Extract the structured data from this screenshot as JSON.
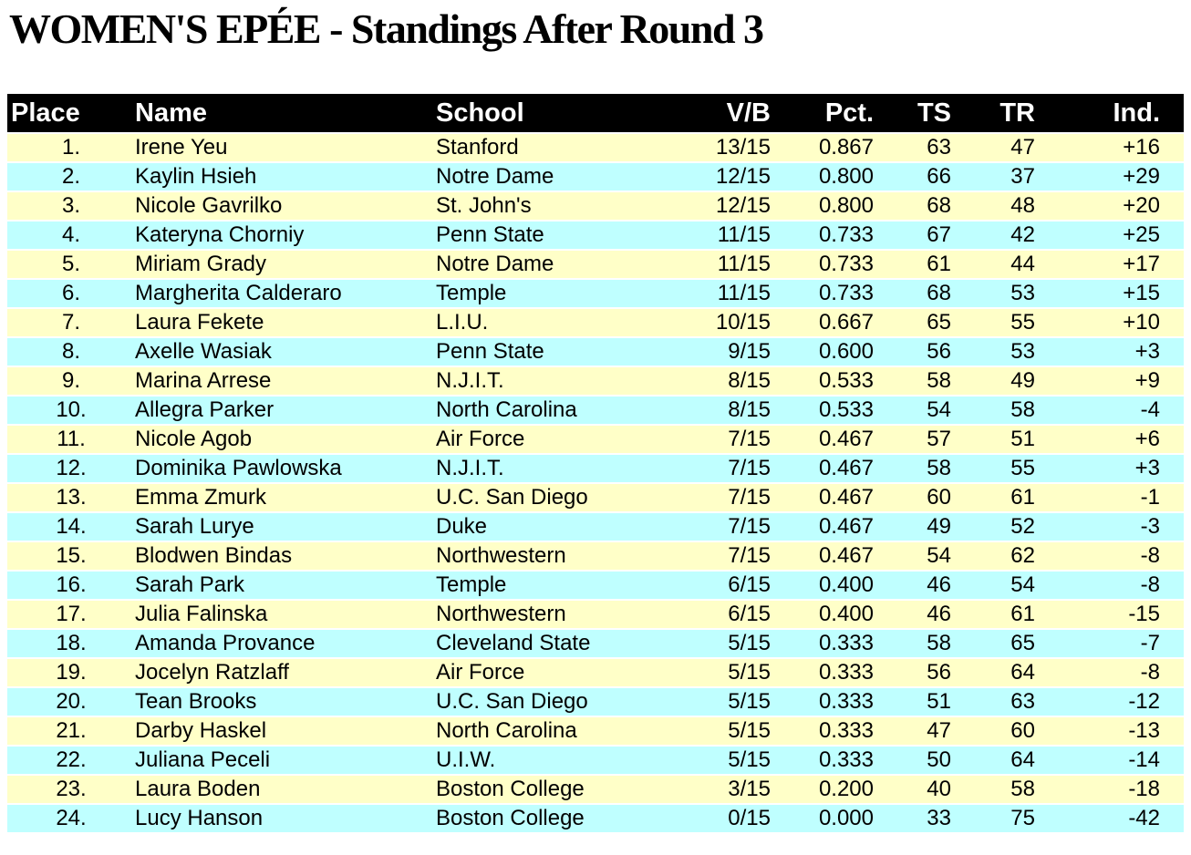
{
  "title": "WOMEN'S EPÉE - Standings After Round 3",
  "colors": {
    "header_bg": "#000000",
    "header_text": "#FFFFFF",
    "row_odd": "#FFFFC8",
    "row_even": "#BFFFFF",
    "body_text": "#000000"
  },
  "table": {
    "columns": [
      {
        "key": "place",
        "label": "Place"
      },
      {
        "key": "name",
        "label": "Name"
      },
      {
        "key": "school",
        "label": "School"
      },
      {
        "key": "vb",
        "label": "V/B"
      },
      {
        "key": "pct",
        "label": "Pct."
      },
      {
        "key": "ts",
        "label": "TS"
      },
      {
        "key": "tr",
        "label": "TR"
      },
      {
        "key": "ind",
        "label": "Ind."
      }
    ],
    "rows": [
      {
        "place": "1.",
        "name": "Irene Yeu",
        "school": "Stanford",
        "vb": "13/15",
        "pct": "0.867",
        "ts": "63",
        "tr": "47",
        "ind": "+16"
      },
      {
        "place": "2.",
        "name": "Kaylin Hsieh",
        "school": "Notre Dame",
        "vb": "12/15",
        "pct": "0.800",
        "ts": "66",
        "tr": "37",
        "ind": "+29"
      },
      {
        "place": "3.",
        "name": "Nicole Gavrilko",
        "school": "St. John's",
        "vb": "12/15",
        "pct": "0.800",
        "ts": "68",
        "tr": "48",
        "ind": "+20"
      },
      {
        "place": "4.",
        "name": "Kateryna Chorniy",
        "school": "Penn State",
        "vb": "11/15",
        "pct": "0.733",
        "ts": "67",
        "tr": "42",
        "ind": "+25"
      },
      {
        "place": "5.",
        "name": "Miriam Grady",
        "school": "Notre Dame",
        "vb": "11/15",
        "pct": "0.733",
        "ts": "61",
        "tr": "44",
        "ind": "+17"
      },
      {
        "place": "6.",
        "name": "Margherita Calderaro",
        "school": "Temple",
        "vb": "11/15",
        "pct": "0.733",
        "ts": "68",
        "tr": "53",
        "ind": "+15"
      },
      {
        "place": "7.",
        "name": "Laura Fekete",
        "school": "L.I.U.",
        "vb": "10/15",
        "pct": "0.667",
        "ts": "65",
        "tr": "55",
        "ind": "+10"
      },
      {
        "place": "8.",
        "name": "Axelle Wasiak",
        "school": "Penn State",
        "vb": "9/15",
        "pct": "0.600",
        "ts": "56",
        "tr": "53",
        "ind": "+3"
      },
      {
        "place": "9.",
        "name": "Marina Arrese",
        "school": "N.J.I.T.",
        "vb": "8/15",
        "pct": "0.533",
        "ts": "58",
        "tr": "49",
        "ind": "+9"
      },
      {
        "place": "10.",
        "name": "Allegra Parker",
        "school": "North Carolina",
        "vb": "8/15",
        "pct": "0.533",
        "ts": "54",
        "tr": "58",
        "ind": "-4"
      },
      {
        "place": "11.",
        "name": "Nicole Agob",
        "school": "Air Force",
        "vb": "7/15",
        "pct": "0.467",
        "ts": "57",
        "tr": "51",
        "ind": "+6"
      },
      {
        "place": "12.",
        "name": "Dominika Pawlowska",
        "school": "N.J.I.T.",
        "vb": "7/15",
        "pct": "0.467",
        "ts": "58",
        "tr": "55",
        "ind": "+3"
      },
      {
        "place": "13.",
        "name": "Emma Zmurk",
        "school": "U.C. San Diego",
        "vb": "7/15",
        "pct": "0.467",
        "ts": "60",
        "tr": "61",
        "ind": "-1"
      },
      {
        "place": "14.",
        "name": "Sarah Lurye",
        "school": "Duke",
        "vb": "7/15",
        "pct": "0.467",
        "ts": "49",
        "tr": "52",
        "ind": "-3"
      },
      {
        "place": "15.",
        "name": "Blodwen Bindas",
        "school": "Northwestern",
        "vb": "7/15",
        "pct": "0.467",
        "ts": "54",
        "tr": "62",
        "ind": "-8"
      },
      {
        "place": "16.",
        "name": "Sarah Park",
        "school": "Temple",
        "vb": "6/15",
        "pct": "0.400",
        "ts": "46",
        "tr": "54",
        "ind": "-8"
      },
      {
        "place": "17.",
        "name": "Julia Falinska",
        "school": "Northwestern",
        "vb": "6/15",
        "pct": "0.400",
        "ts": "46",
        "tr": "61",
        "ind": "-15"
      },
      {
        "place": "18.",
        "name": "Amanda Provance",
        "school": "Cleveland State",
        "vb": "5/15",
        "pct": "0.333",
        "ts": "58",
        "tr": "65",
        "ind": "-7"
      },
      {
        "place": "19.",
        "name": "Jocelyn Ratzlaff",
        "school": "Air Force",
        "vb": "5/15",
        "pct": "0.333",
        "ts": "56",
        "tr": "64",
        "ind": "-8"
      },
      {
        "place": "20.",
        "name": "Tean Brooks",
        "school": "U.C. San Diego",
        "vb": "5/15",
        "pct": "0.333",
        "ts": "51",
        "tr": "63",
        "ind": "-12"
      },
      {
        "place": "21.",
        "name": "Darby Haskel",
        "school": "North Carolina",
        "vb": "5/15",
        "pct": "0.333",
        "ts": "47",
        "tr": "60",
        "ind": "-13"
      },
      {
        "place": "22.",
        "name": "Juliana Peceli",
        "school": "U.I.W.",
        "vb": "5/15",
        "pct": "0.333",
        "ts": "50",
        "tr": "64",
        "ind": "-14"
      },
      {
        "place": "23.",
        "name": "Laura Boden",
        "school": "Boston College",
        "vb": "3/15",
        "pct": "0.200",
        "ts": "40",
        "tr": "58",
        "ind": "-18"
      },
      {
        "place": "24.",
        "name": "Lucy Hanson",
        "school": "Boston College",
        "vb": "0/15",
        "pct": "0.000",
        "ts": "33",
        "tr": "75",
        "ind": "-42"
      }
    ]
  }
}
